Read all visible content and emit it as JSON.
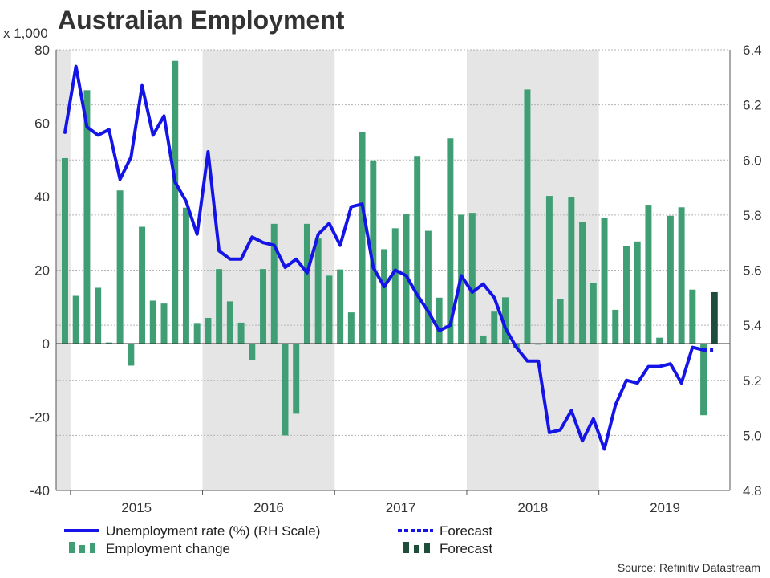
{
  "chart_data": {
    "type": "bar+line",
    "title": "Australian Employment",
    "left_axis_unit": "x 1,000",
    "left_axis": {
      "min": -40,
      "max": 80,
      "ticks": [
        -40,
        -20,
        0,
        20,
        40,
        60,
        80
      ],
      "tick_labels": [
        "-40",
        "-20",
        "0",
        "20",
        "40",
        "60",
        "80"
      ]
    },
    "right_axis": {
      "min": 4.8,
      "max": 6.4,
      "ticks": [
        4.8,
        5.0,
        5.2,
        5.4,
        5.6,
        5.8,
        6.0,
        6.2,
        6.4
      ],
      "tick_labels": [
        "4.8",
        "5.0",
        "5.2",
        "5.4",
        "5.6",
        "5.8",
        "6.0",
        "6.2",
        "6.4"
      ]
    },
    "x_axis": {
      "start": "2014-12",
      "end": "2019-11",
      "year_labels": [
        "2015",
        "2016",
        "2017",
        "2018",
        "2019"
      ],
      "shaded_years": [
        "2014",
        "2016",
        "2018"
      ]
    },
    "grid": true,
    "source": "Source: Refinitiv Datastream",
    "legend": [
      {
        "label": "Unemployment rate (%) (RH Scale)",
        "style": "line",
        "color": "#1414e6"
      },
      {
        "label": "Forecast",
        "style": "dotted-line",
        "color": "#1414e6"
      },
      {
        "label": "Employment change",
        "style": "bars",
        "color": "#3f9e74"
      },
      {
        "label": "Forecast",
        "style": "bars",
        "color": "#1f4d3b"
      }
    ],
    "series": [
      {
        "name": "Employment change",
        "axis": "left",
        "type": "bar",
        "color": "#3f9e74",
        "months": [
          "2014-12",
          "2015-01",
          "2015-02",
          "2015-03",
          "2015-04",
          "2015-05",
          "2015-06",
          "2015-07",
          "2015-08",
          "2015-09",
          "2015-10",
          "2015-11",
          "2015-12",
          "2016-01",
          "2016-02",
          "2016-03",
          "2016-04",
          "2016-05",
          "2016-06",
          "2016-07",
          "2016-08",
          "2016-09",
          "2016-10",
          "2016-11",
          "2016-12",
          "2017-01",
          "2017-02",
          "2017-03",
          "2017-04",
          "2017-05",
          "2017-06",
          "2017-07",
          "2017-08",
          "2017-09",
          "2017-10",
          "2017-11",
          "2017-12",
          "2018-01",
          "2018-02",
          "2018-03",
          "2018-04",
          "2018-05",
          "2018-06",
          "2018-07",
          "2018-08",
          "2018-09",
          "2018-10",
          "2018-11",
          "2018-12",
          "2019-01",
          "2019-02",
          "2019-03",
          "2019-04",
          "2019-05",
          "2019-06",
          "2019-07",
          "2019-08",
          "2019-09",
          "2019-10"
        ],
        "values": [
          50.5,
          13,
          69,
          15.2,
          0.3,
          41.7,
          -6,
          31.8,
          11.7,
          10.9,
          77,
          37,
          5.6,
          7,
          20.3,
          11.5,
          5.7,
          -4.5,
          20.3,
          32.6,
          -25,
          -19.1,
          32.6,
          28.6,
          18.5,
          20.2,
          8.5,
          57.6,
          49.9,
          25.7,
          31.4,
          35.2,
          51.1,
          30.7,
          12.5,
          55.9,
          35.1,
          35.6,
          2.2,
          8.7,
          12.6,
          -1.3,
          69.2,
          -0.3,
          40.2,
          12.1,
          39.9,
          33.1,
          16.6,
          34.3,
          9.2,
          26.6,
          27.8,
          37.8,
          1.6,
          34.8,
          37.1,
          14.7,
          -19.5
        ]
      },
      {
        "name": "Forecast",
        "axis": "left",
        "type": "bar",
        "color": "#1f4d3b",
        "months": [
          "2019-11"
        ],
        "values": [
          14
        ]
      },
      {
        "name": "Unemployment rate (%) (RH Scale)",
        "axis": "right",
        "type": "line",
        "color": "#1414e6",
        "months": [
          "2014-12",
          "2015-01",
          "2015-02",
          "2015-03",
          "2015-04",
          "2015-05",
          "2015-06",
          "2015-07",
          "2015-08",
          "2015-09",
          "2015-10",
          "2015-11",
          "2015-12",
          "2016-01",
          "2016-02",
          "2016-03",
          "2016-04",
          "2016-05",
          "2016-06",
          "2016-07",
          "2016-08",
          "2016-09",
          "2016-10",
          "2016-11",
          "2016-12",
          "2017-01",
          "2017-02",
          "2017-03",
          "2017-04",
          "2017-05",
          "2017-06",
          "2017-07",
          "2017-08",
          "2017-09",
          "2017-10",
          "2017-11",
          "2017-12",
          "2018-01",
          "2018-02",
          "2018-03",
          "2018-04",
          "2018-05",
          "2018-06",
          "2018-07",
          "2018-08",
          "2018-09",
          "2018-10",
          "2018-11",
          "2018-12",
          "2019-01",
          "2019-02",
          "2019-03",
          "2019-04",
          "2019-05",
          "2019-06",
          "2019-07",
          "2019-08",
          "2019-09",
          "2019-10"
        ],
        "values": [
          6.1,
          6.34,
          6.12,
          6.09,
          6.11,
          5.93,
          6.01,
          6.27,
          6.09,
          6.16,
          5.92,
          5.85,
          5.73,
          6.03,
          5.67,
          5.64,
          5.64,
          5.72,
          5.7,
          5.69,
          5.61,
          5.64,
          5.59,
          5.73,
          5.77,
          5.69,
          5.83,
          5.84,
          5.61,
          5.54,
          5.6,
          5.58,
          5.51,
          5.45,
          5.38,
          5.4,
          5.58,
          5.52,
          5.55,
          5.5,
          5.39,
          5.32,
          5.27,
          5.27,
          5.01,
          5.02,
          5.09,
          4.98,
          5.06,
          4.95,
          5.11,
          5.2,
          5.19,
          5.25,
          5.25,
          5.26,
          5.19,
          5.32,
          5.31
        ]
      },
      {
        "name": "Forecast",
        "axis": "right",
        "type": "dotted-line",
        "color": "#1414e6",
        "months": [
          "2019-10",
          "2019-11"
        ],
        "values": [
          5.31,
          5.31
        ]
      }
    ]
  }
}
